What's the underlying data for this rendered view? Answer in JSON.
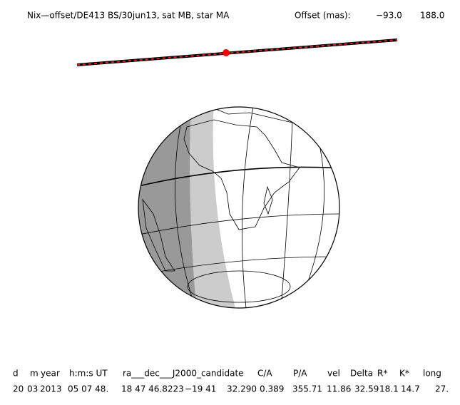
{
  "header": {
    "title": "Nix—offset/DE413 BS/30jun13, sat MB, star MA",
    "offset_label": "Offset (mas):",
    "offset_values": [
      "−93.0",
      "188.0"
    ]
  },
  "table": {
    "columns": [
      "d",
      "m",
      "year",
      "h:m:s UT",
      "ra___dec___J2000_candidate",
      "C/A",
      "P/A",
      "vel",
      "Delta",
      "R*",
      "K*",
      "long"
    ],
    "rows": [
      [
        "20",
        "03",
        "2013",
        "05 07 48.",
        "18 47 46.8223",
        "−19 41",
        "32.290",
        "0.389",
        "355.71",
        "11.86",
        "32.59",
        "18.1",
        "14.7",
        "27."
      ]
    ]
  }
}
